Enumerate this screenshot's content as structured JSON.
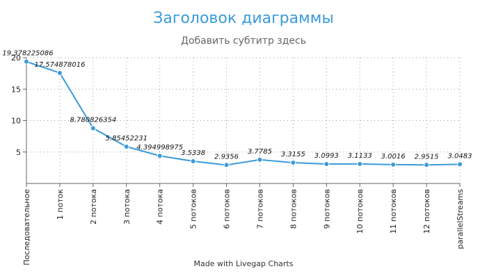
{
  "chart_data": {
    "type": "line",
    "title": "Заголовок диаграммы",
    "subtitle": "Добавить субтитр здесь",
    "footer": "Made with Livegap Charts",
    "xlabel": "",
    "ylabel": "",
    "ylim": [
      0,
      20
    ],
    "yticks": [
      5,
      10,
      15,
      20
    ],
    "grid": true,
    "categories": [
      "Последовательное",
      "1 поток",
      "2 потока",
      "3 потока",
      "4 потока",
      "5 потоков",
      "6 потоков",
      "7 потоков",
      "8 потоков",
      "9 потоков",
      "10 потоков",
      "11 потоков",
      "12 потоков",
      "parallelStreams"
    ],
    "series": [
      {
        "name": "Series 1",
        "color": "#3a9ad9",
        "values": [
          19.378225086,
          17.574878016,
          8.780826354,
          5.85452231,
          4.394998975,
          3.5338,
          2.9356,
          3.7785,
          3.3155,
          3.0993,
          3.1133,
          3.0016,
          2.9515,
          3.0483
        ],
        "labels": [
          "19.378225086",
          "17.574878016",
          "8.780826354",
          "5.85452231",
          "4.394998975",
          "3.5338",
          "2.9356",
          "3.7785",
          "3.3155",
          "3.0993",
          "3.1133",
          "3.0016",
          "2.9515",
          "3.0483"
        ]
      }
    ]
  }
}
